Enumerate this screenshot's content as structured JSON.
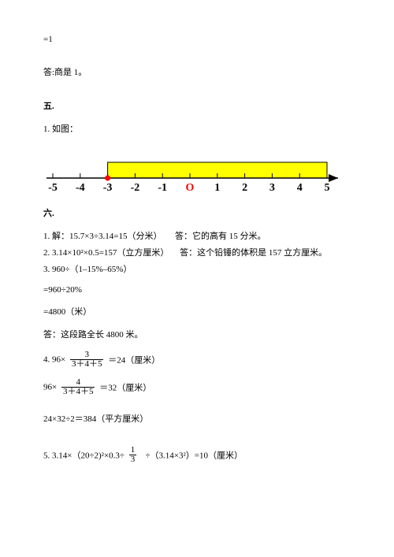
{
  "top": {
    "l1": "=1",
    "l2": "答:商是 1。"
  },
  "s5": {
    "title": "五.",
    "q1": "1. 如图：",
    "numline": {
      "ticks": [
        -5,
        -4,
        -3,
        -2,
        -1,
        0,
        1,
        2,
        3,
        4,
        5
      ],
      "zero_label": "O",
      "dot_at": -3,
      "band": {
        "from": -3,
        "to": 5,
        "fill": "#ffff00",
        "stroke": "#000000"
      },
      "tick_label_fontsize": 14,
      "tick_label_color": "#000000",
      "zero_label_color": "#ff0000",
      "dot_color": "#ff0000",
      "axis_stroke": "#000000",
      "arrow_fill": "#000000",
      "band_height": 20,
      "line_width": 1.5,
      "tick_len": 6
    }
  },
  "s6": {
    "title": "六.",
    "q1a": "1. 解：15.7×3÷3.14=15（分米）",
    "q1b": "答：它的高有 15 分米。",
    "q2a": "2. 3.14×10²×0.5=157（立方厘米）",
    "q2b": "答：这个铅锤的体积是 157 立方厘米。",
    "q3a": "3. 960÷（1–15%–65%）",
    "q3b": "=960÷20%",
    "q3c": "=4800（米）",
    "q3d": "答：这段路全长 4800 米。",
    "q4": {
      "pre": "4. 96×",
      "frac1_num": "3",
      "frac1_den": "3＋4＋5",
      "mid1": "＝24（厘米）",
      "pre2": "96×",
      "frac2_num": "4",
      "frac2_den": "3＋4＋5",
      "mid2": "＝32（厘米）",
      "l3": "24×32÷2＝384（平方厘米）"
    },
    "q5": {
      "a": "5. 3.14×（20÷2)²×0.3÷",
      "frac_num": "1",
      "frac_den": "3",
      "b": "÷（3.14×3²）=10（厘米）"
    }
  }
}
